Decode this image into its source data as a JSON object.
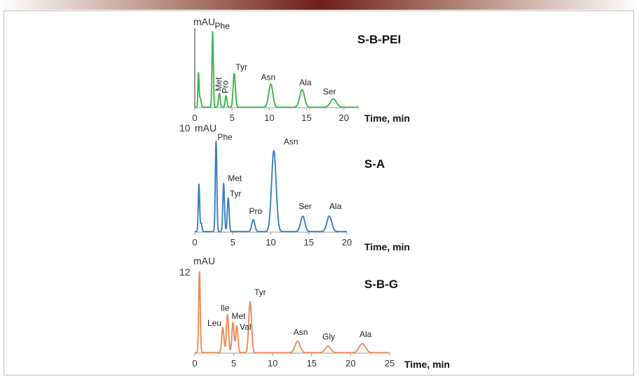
{
  "chart_data": [
    {
      "type": "line",
      "title": "S-B-PEI",
      "xlabel": "Time, min",
      "ylabel": "mAU",
      "y_tick": "",
      "xlim": [
        0,
        22
      ],
      "xticks": [
        0,
        5,
        10,
        15,
        20
      ],
      "ylim": [
        0,
        100
      ],
      "color": "#3cb54a",
      "vertical_axis": true,
      "injection_spikes": [
        {
          "t": 0.5,
          "h": 45,
          "w": 0.08
        },
        {
          "t": 0.75,
          "h": 12,
          "w": 0.1
        }
      ],
      "peaks": [
        {
          "name": "Phe",
          "t": 2.4,
          "h": 100,
          "w": 0.09
        },
        {
          "name": "Met",
          "t": 3.3,
          "h": 18,
          "w": 0.12,
          "vertical": true
        },
        {
          "name": "Pro",
          "t": 4.2,
          "h": 15,
          "w": 0.12,
          "vertical": true
        },
        {
          "name": "Tyr",
          "t": 5.3,
          "h": 44,
          "w": 0.15
        },
        {
          "name": "Asn",
          "t": 10.2,
          "h": 30,
          "w": 0.28
        },
        {
          "name": "Ala",
          "t": 14.4,
          "h": 23,
          "w": 0.32
        },
        {
          "name": "Ser",
          "t": 18.6,
          "h": 11,
          "w": 0.4
        }
      ]
    },
    {
      "type": "line",
      "title": "S-A",
      "xlabel": "Time, min",
      "ylabel": "mAU",
      "y_tick": "10",
      "xlim": [
        0,
        20
      ],
      "xticks": [
        0,
        5,
        10,
        15,
        20
      ],
      "ylim": [
        0,
        100
      ],
      "color": "#3a7ebf",
      "vertical_axis": false,
      "injection_spikes": [
        {
          "t": 0.55,
          "h": 52,
          "w": 0.09
        },
        {
          "t": 0.85,
          "h": 9,
          "w": 0.1
        }
      ],
      "peaks": [
        {
          "name": "Phe",
          "t": 2.8,
          "h": 100,
          "w": 0.1
        },
        {
          "name": "Met",
          "t": 3.8,
          "h": 53,
          "w": 0.11
        },
        {
          "name": "Tyr",
          "t": 4.4,
          "h": 37,
          "w": 0.12
        },
        {
          "name": "Pro",
          "t": 7.7,
          "h": 13,
          "w": 0.2
        },
        {
          "name": "Asn",
          "t": 10.4,
          "h": 89,
          "w": 0.3
        },
        {
          "name": "Ser",
          "t": 14.2,
          "h": 17,
          "w": 0.28
        },
        {
          "name": "Ala",
          "t": 17.7,
          "h": 17,
          "w": 0.32
        }
      ]
    },
    {
      "type": "line",
      "title": "S-B-G",
      "xlabel": "Time, min",
      "ylabel": "mAU",
      "y_tick": "12",
      "xlim": [
        0,
        25
      ],
      "xticks": [
        0,
        5,
        10,
        15,
        20,
        25
      ],
      "ylim": [
        0,
        100
      ],
      "color": "#ee8b55",
      "vertical_axis": false,
      "injection_spikes": [
        {
          "t": 0.6,
          "h": 100,
          "w": 0.1
        }
      ],
      "peaks": [
        {
          "name": "Leu",
          "t": 3.6,
          "h": 31,
          "w": 0.14
        },
        {
          "name": "Ile",
          "t": 4.2,
          "h": 47,
          "w": 0.14
        },
        {
          "name": "Met",
          "t": 4.9,
          "h": 37,
          "w": 0.14
        },
        {
          "name": "Val",
          "t": 5.4,
          "h": 33,
          "w": 0.14
        },
        {
          "name": "Tyr",
          "t": 7.1,
          "h": 63,
          "w": 0.18
        },
        {
          "name": "Asn",
          "t": 13.2,
          "h": 14,
          "w": 0.32
        },
        {
          "name": "Gly",
          "t": 17.1,
          "h": 8,
          "w": 0.35
        },
        {
          "name": "Ala",
          "t": 21.5,
          "h": 11,
          "w": 0.4
        }
      ]
    }
  ]
}
